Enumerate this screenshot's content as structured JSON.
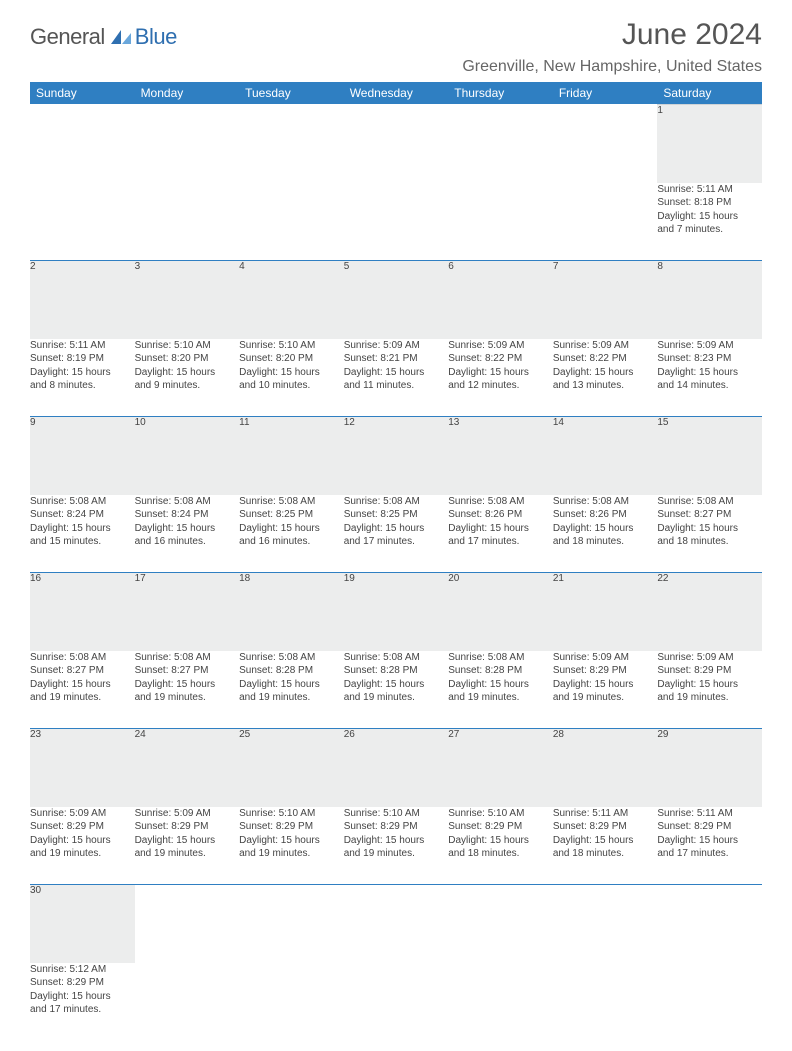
{
  "logo": {
    "word1": "General",
    "word2": "Blue",
    "icon_color": "#2f6fb0"
  },
  "title": {
    "month_year": "June 2024"
  },
  "location": "Greenville, New Hampshire, United States",
  "colors": {
    "header_band": "#2f7fc2",
    "header_text": "#ffffff",
    "daynum_bg": "#eceded",
    "row_divider": "#2f7fc2",
    "body_text": "#444444",
    "title_text": "#555555"
  },
  "daynames": [
    "Sunday",
    "Monday",
    "Tuesday",
    "Wednesday",
    "Thursday",
    "Friday",
    "Saturday"
  ],
  "weeks": [
    [
      null,
      null,
      null,
      null,
      null,
      null,
      {
        "n": "1",
        "sr": "Sunrise: 5:11 AM",
        "ss": "Sunset: 8:18 PM",
        "dl1": "Daylight: 15 hours",
        "dl2": "and 7 minutes."
      }
    ],
    [
      {
        "n": "2",
        "sr": "Sunrise: 5:11 AM",
        "ss": "Sunset: 8:19 PM",
        "dl1": "Daylight: 15 hours",
        "dl2": "and 8 minutes."
      },
      {
        "n": "3",
        "sr": "Sunrise: 5:10 AM",
        "ss": "Sunset: 8:20 PM",
        "dl1": "Daylight: 15 hours",
        "dl2": "and 9 minutes."
      },
      {
        "n": "4",
        "sr": "Sunrise: 5:10 AM",
        "ss": "Sunset: 8:20 PM",
        "dl1": "Daylight: 15 hours",
        "dl2": "and 10 minutes."
      },
      {
        "n": "5",
        "sr": "Sunrise: 5:09 AM",
        "ss": "Sunset: 8:21 PM",
        "dl1": "Daylight: 15 hours",
        "dl2": "and 11 minutes."
      },
      {
        "n": "6",
        "sr": "Sunrise: 5:09 AM",
        "ss": "Sunset: 8:22 PM",
        "dl1": "Daylight: 15 hours",
        "dl2": "and 12 minutes."
      },
      {
        "n": "7",
        "sr": "Sunrise: 5:09 AM",
        "ss": "Sunset: 8:22 PM",
        "dl1": "Daylight: 15 hours",
        "dl2": "and 13 minutes."
      },
      {
        "n": "8",
        "sr": "Sunrise: 5:09 AM",
        "ss": "Sunset: 8:23 PM",
        "dl1": "Daylight: 15 hours",
        "dl2": "and 14 minutes."
      }
    ],
    [
      {
        "n": "9",
        "sr": "Sunrise: 5:08 AM",
        "ss": "Sunset: 8:24 PM",
        "dl1": "Daylight: 15 hours",
        "dl2": "and 15 minutes."
      },
      {
        "n": "10",
        "sr": "Sunrise: 5:08 AM",
        "ss": "Sunset: 8:24 PM",
        "dl1": "Daylight: 15 hours",
        "dl2": "and 16 minutes."
      },
      {
        "n": "11",
        "sr": "Sunrise: 5:08 AM",
        "ss": "Sunset: 8:25 PM",
        "dl1": "Daylight: 15 hours",
        "dl2": "and 16 minutes."
      },
      {
        "n": "12",
        "sr": "Sunrise: 5:08 AM",
        "ss": "Sunset: 8:25 PM",
        "dl1": "Daylight: 15 hours",
        "dl2": "and 17 minutes."
      },
      {
        "n": "13",
        "sr": "Sunrise: 5:08 AM",
        "ss": "Sunset: 8:26 PM",
        "dl1": "Daylight: 15 hours",
        "dl2": "and 17 minutes."
      },
      {
        "n": "14",
        "sr": "Sunrise: 5:08 AM",
        "ss": "Sunset: 8:26 PM",
        "dl1": "Daylight: 15 hours",
        "dl2": "and 18 minutes."
      },
      {
        "n": "15",
        "sr": "Sunrise: 5:08 AM",
        "ss": "Sunset: 8:27 PM",
        "dl1": "Daylight: 15 hours",
        "dl2": "and 18 minutes."
      }
    ],
    [
      {
        "n": "16",
        "sr": "Sunrise: 5:08 AM",
        "ss": "Sunset: 8:27 PM",
        "dl1": "Daylight: 15 hours",
        "dl2": "and 19 minutes."
      },
      {
        "n": "17",
        "sr": "Sunrise: 5:08 AM",
        "ss": "Sunset: 8:27 PM",
        "dl1": "Daylight: 15 hours",
        "dl2": "and 19 minutes."
      },
      {
        "n": "18",
        "sr": "Sunrise: 5:08 AM",
        "ss": "Sunset: 8:28 PM",
        "dl1": "Daylight: 15 hours",
        "dl2": "and 19 minutes."
      },
      {
        "n": "19",
        "sr": "Sunrise: 5:08 AM",
        "ss": "Sunset: 8:28 PM",
        "dl1": "Daylight: 15 hours",
        "dl2": "and 19 minutes."
      },
      {
        "n": "20",
        "sr": "Sunrise: 5:08 AM",
        "ss": "Sunset: 8:28 PM",
        "dl1": "Daylight: 15 hours",
        "dl2": "and 19 minutes."
      },
      {
        "n": "21",
        "sr": "Sunrise: 5:09 AM",
        "ss": "Sunset: 8:29 PM",
        "dl1": "Daylight: 15 hours",
        "dl2": "and 19 minutes."
      },
      {
        "n": "22",
        "sr": "Sunrise: 5:09 AM",
        "ss": "Sunset: 8:29 PM",
        "dl1": "Daylight: 15 hours",
        "dl2": "and 19 minutes."
      }
    ],
    [
      {
        "n": "23",
        "sr": "Sunrise: 5:09 AM",
        "ss": "Sunset: 8:29 PM",
        "dl1": "Daylight: 15 hours",
        "dl2": "and 19 minutes."
      },
      {
        "n": "24",
        "sr": "Sunrise: 5:09 AM",
        "ss": "Sunset: 8:29 PM",
        "dl1": "Daylight: 15 hours",
        "dl2": "and 19 minutes."
      },
      {
        "n": "25",
        "sr": "Sunrise: 5:10 AM",
        "ss": "Sunset: 8:29 PM",
        "dl1": "Daylight: 15 hours",
        "dl2": "and 19 minutes."
      },
      {
        "n": "26",
        "sr": "Sunrise: 5:10 AM",
        "ss": "Sunset: 8:29 PM",
        "dl1": "Daylight: 15 hours",
        "dl2": "and 19 minutes."
      },
      {
        "n": "27",
        "sr": "Sunrise: 5:10 AM",
        "ss": "Sunset: 8:29 PM",
        "dl1": "Daylight: 15 hours",
        "dl2": "and 18 minutes."
      },
      {
        "n": "28",
        "sr": "Sunrise: 5:11 AM",
        "ss": "Sunset: 8:29 PM",
        "dl1": "Daylight: 15 hours",
        "dl2": "and 18 minutes."
      },
      {
        "n": "29",
        "sr": "Sunrise: 5:11 AM",
        "ss": "Sunset: 8:29 PM",
        "dl1": "Daylight: 15 hours",
        "dl2": "and 17 minutes."
      }
    ],
    [
      {
        "n": "30",
        "sr": "Sunrise: 5:12 AM",
        "ss": "Sunset: 8:29 PM",
        "dl1": "Daylight: 15 hours",
        "dl2": "and 17 minutes."
      },
      null,
      null,
      null,
      null,
      null,
      null
    ]
  ]
}
